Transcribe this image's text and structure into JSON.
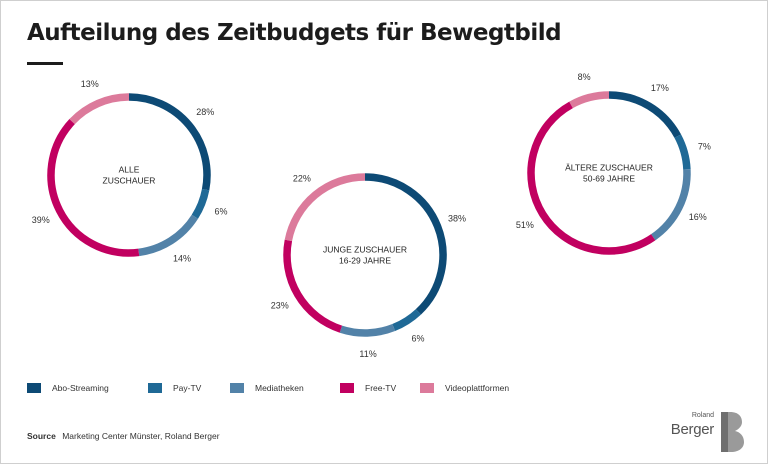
{
  "title": "Aufteilung des Zeitbudgets für Bewegtbild",
  "colors": {
    "Abo-Streaming": "#0d4a75",
    "Pay-TV": "#1f6996",
    "Mediatheken": "#5282a8",
    "Free-TV": "#c10060",
    "Videoplattformen": "#dc7a9b"
  },
  "legend": [
    "Abo-Streaming",
    "Pay-TV",
    "Mediatheken",
    "Free-TV",
    "Videoplattformen"
  ],
  "chart_data": [
    {
      "type": "pie",
      "title": "ALLE\nZUSCHAUER",
      "title_lines": [
        "ALLE",
        "ZUSCHAUER"
      ],
      "categories": [
        "Abo-Streaming",
        "Pay-TV",
        "Mediatheken",
        "Free-TV",
        "Videoplattformen"
      ],
      "values": [
        28,
        6,
        14,
        39,
        13
      ],
      "labels": [
        "28%",
        "6%",
        "14%",
        "39%",
        "13%"
      ]
    },
    {
      "type": "pie",
      "title": "JUNGE ZUSCHAUER\n16-29 JAHRE",
      "title_lines": [
        "JUNGE ZUSCHAUER",
        "16-29 JAHRE"
      ],
      "categories": [
        "Abo-Streaming",
        "Pay-TV",
        "Mediatheken",
        "Free-TV",
        "Videoplattformen"
      ],
      "values": [
        38,
        6,
        11,
        23,
        22
      ],
      "labels": [
        "38%",
        "6%",
        "11%",
        "23%",
        "22%"
      ]
    },
    {
      "type": "pie",
      "title": "ÄLTERE ZUSCHAUER\n50-69 JAHRE",
      "title_lines": [
        "ÄLTERE ZUSCHAUER",
        "50-69 JAHRE"
      ],
      "categories": [
        "Abo-Streaming",
        "Pay-TV",
        "Mediatheken",
        "Free-TV",
        "Videoplattformen"
      ],
      "values": [
        17,
        7,
        16,
        51,
        8
      ],
      "labels": [
        "17%",
        "7%",
        "16%",
        "51%",
        "8%"
      ]
    }
  ],
  "source": {
    "label": "Source",
    "text": "Marketing Center Münster, Roland Berger"
  },
  "logo": {
    "small": "Roland",
    "big": "Berger"
  }
}
